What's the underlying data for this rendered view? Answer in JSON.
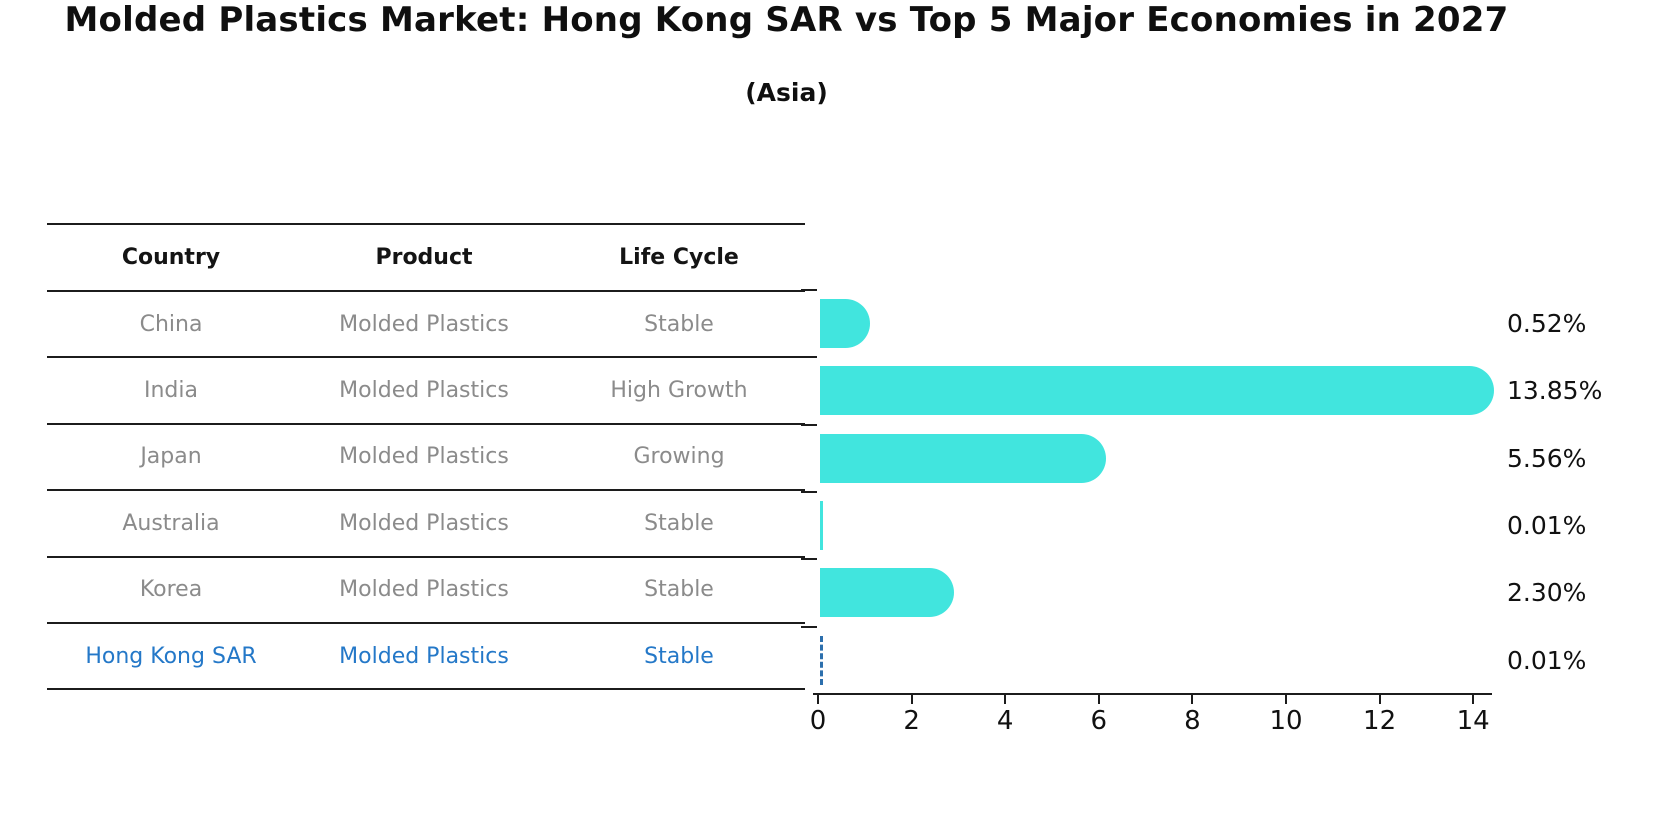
{
  "title": "Molded Plastics Market: Hong Kong SAR vs Top 5 Major Economies in 2027",
  "subtitle": "(Asia)",
  "table": {
    "headers": [
      "Country",
      "Product",
      "Life Cycle"
    ],
    "rows": [
      {
        "country": "China",
        "product": "Molded Plastics",
        "life_cycle": "Stable",
        "highlight": false
      },
      {
        "country": "India",
        "product": "Molded Plastics",
        "life_cycle": "High Growth",
        "highlight": false
      },
      {
        "country": "Japan",
        "product": "Molded Plastics",
        "life_cycle": "Growing",
        "highlight": false
      },
      {
        "country": "Australia",
        "product": "Molded Plastics",
        "life_cycle": "Stable",
        "highlight": false
      },
      {
        "country": "Korea",
        "product": "Molded Plastics",
        "life_cycle": "Stable",
        "highlight": false
      },
      {
        "country": "Hong Kong SAR",
        "product": "Molded Plastics",
        "life_cycle": "Stable",
        "highlight": true
      }
    ]
  },
  "chart_data": {
    "type": "bar",
    "orientation": "horizontal",
    "title": "Molded Plastics Market: Hong Kong SAR vs Top 5 Major Economies in 2027",
    "subtitle": "(Asia)",
    "categories": [
      "China",
      "India",
      "Japan",
      "Australia",
      "Korea",
      "Hong Kong SAR"
    ],
    "values": [
      0.52,
      13.85,
      5.56,
      0.01,
      2.3,
      0.01
    ],
    "value_labels": [
      "0.52%",
      "13.85%",
      "5.56%",
      "0.01%",
      "2.30%",
      "0.01%"
    ],
    "x_ticks": [
      "0",
      "2",
      "4",
      "6",
      "8",
      "10",
      "12",
      "14"
    ],
    "xlim": [
      0,
      14.4
    ],
    "grid": false,
    "legend": "none",
    "bar_color": "#41e5de",
    "highlight_index": 5,
    "highlight_style": "dashed-outline",
    "highlight_color": "#2c6fad"
  },
  "colors": {
    "bar": "#41e5de",
    "highlight_text": "#2478c8",
    "row_text": "#8b8b8b",
    "header_text": "#141414",
    "axis_text": "#111111",
    "line": "#1c1c1c",
    "background": "#ffffff"
  }
}
